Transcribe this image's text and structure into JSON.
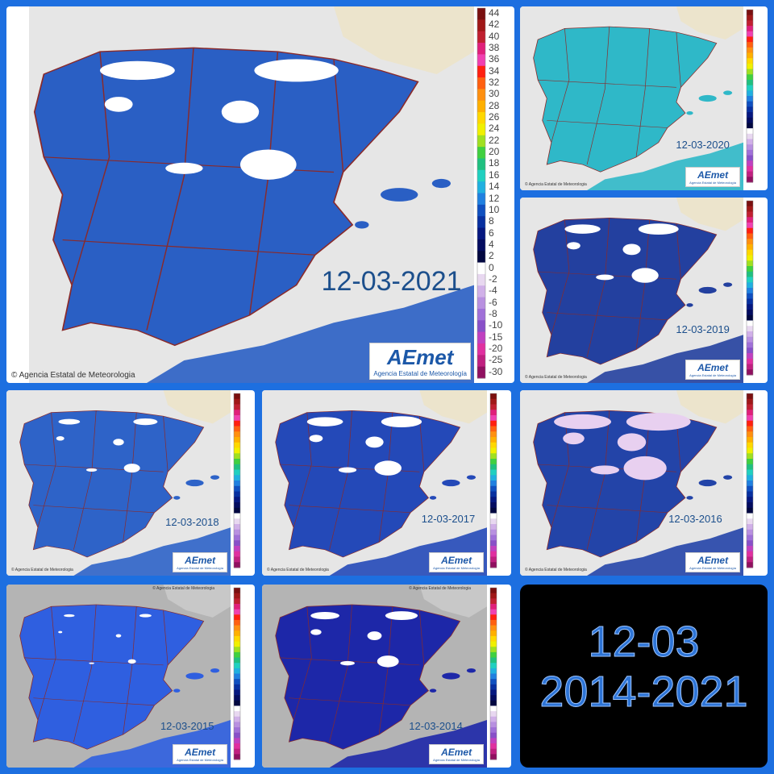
{
  "panels": [
    {
      "date": "12-03-2021"
    },
    {
      "date": "12-03-2020"
    },
    {
      "date": "12-03-2019"
    },
    {
      "date": "12-03-2018"
    },
    {
      "date": "12-03-2017"
    },
    {
      "date": "12-03-2016"
    },
    {
      "date": "12-03-2015"
    },
    {
      "date": "12-03-2014"
    }
  ],
  "legend": {
    "ticks": [
      "44",
      "42",
      "40",
      "38",
      "36",
      "34",
      "32",
      "30",
      "28",
      "26",
      "24",
      "22",
      "20",
      "18",
      "16",
      "14",
      "12",
      "10",
      "8",
      "6",
      "4",
      "2",
      "0",
      "-2",
      "-4",
      "-6",
      "-8",
      "-10",
      "-15",
      "-20",
      "-25",
      "-30"
    ]
  },
  "credit": "© Agencia Estatal de Meteorologia",
  "logo": {
    "name": "AEmet",
    "subtitle": "Agencia Estatal de Meteorología"
  },
  "summary": {
    "line1": "12-03",
    "line2": "2014-2021"
  }
}
